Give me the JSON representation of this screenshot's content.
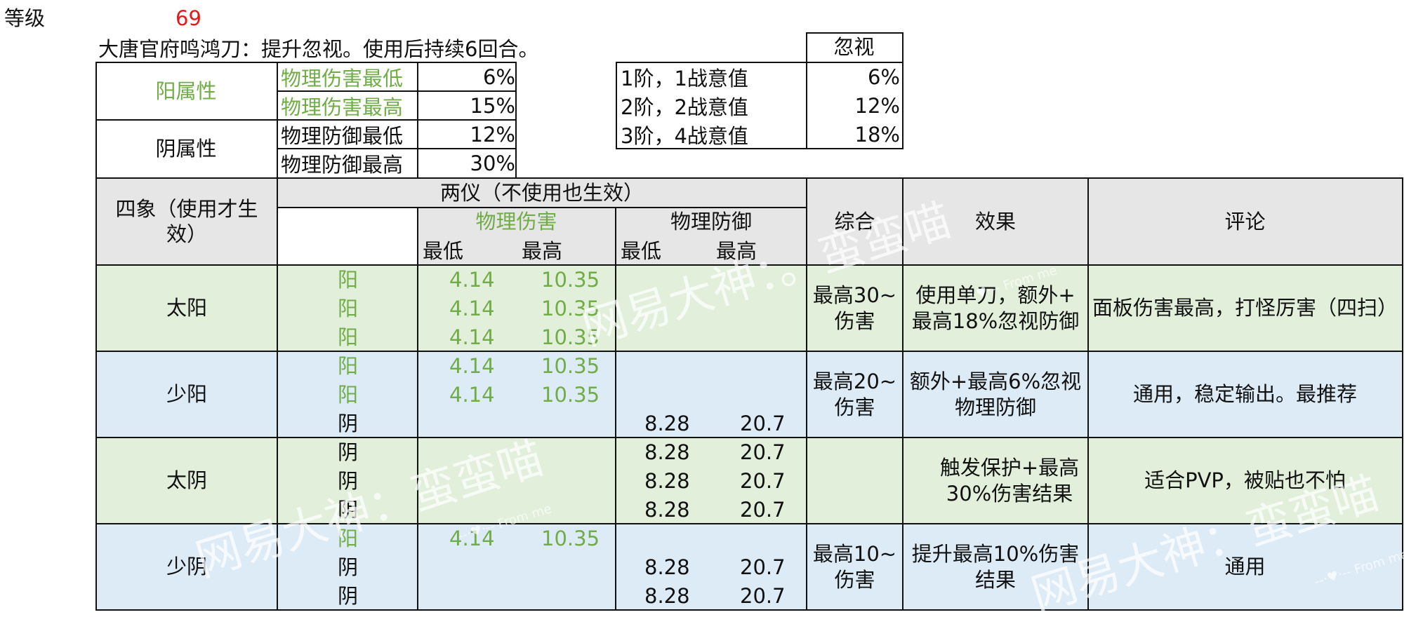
{
  "header": {
    "level_label": "等级",
    "level_value": "69"
  },
  "skill": {
    "description": "大唐官府鸣鸿刀：提升忽视。使用后持续6回合。",
    "yang_label": "阳属性",
    "yin_label": "阴属性",
    "yang_rows": [
      {
        "name": "物理伤害最低",
        "value": "6%"
      },
      {
        "name": "物理伤害最高",
        "value": "15%"
      }
    ],
    "yin_rows": [
      {
        "name": "物理防御最低",
        "value": "12%"
      },
      {
        "name": "物理防御最高",
        "value": "30%"
      }
    ]
  },
  "ignore_table": {
    "header": "忽视",
    "rows": [
      {
        "tier": "1阶，1战意值",
        "value": "6%"
      },
      {
        "tier": "2阶，2战意值",
        "value": "12%"
      },
      {
        "tier": "3阶，4战意值",
        "value": "18%"
      }
    ]
  },
  "main_table": {
    "col_sixiang": "四象（使用才生效）",
    "col_liangyi": "两仪（不使用也生效）",
    "col_phys_dmg": "物理伤害",
    "col_phys_def": "物理防御",
    "col_min": "最低",
    "col_max": "最高",
    "col_total": "综合",
    "col_effect": "效果",
    "col_comment": "评论",
    "groups": [
      {
        "name": "太阳",
        "rows": [
          {
            "type": "阳",
            "dmg_min": "4.14",
            "dmg_max": "10.35",
            "def_min": "",
            "def_max": ""
          },
          {
            "type": "阳",
            "dmg_min": "4.14",
            "dmg_max": "10.35",
            "def_min": "",
            "def_max": ""
          },
          {
            "type": "阳",
            "dmg_min": "4.14",
            "dmg_max": "10.35",
            "def_min": "",
            "def_max": ""
          }
        ],
        "total": "最高30~\n伤害",
        "effect": "使用单刀，额外+\n最高18%忽视防御",
        "comment": "面板伤害最高，打怪厉害（四扫）"
      },
      {
        "name": "少阳",
        "rows": [
          {
            "type": "阳",
            "dmg_min": "4.14",
            "dmg_max": "10.35",
            "def_min": "",
            "def_max": ""
          },
          {
            "type": "阳",
            "dmg_min": "4.14",
            "dmg_max": "10.35",
            "def_min": "",
            "def_max": ""
          },
          {
            "type": "阴",
            "dmg_min": "",
            "dmg_max": "",
            "def_min": "8.28",
            "def_max": "20.7"
          }
        ],
        "total": "最高20~\n伤害",
        "effect": "额外+最高6%忽视\n物理防御",
        "comment": "通用，稳定输出。最推荐"
      },
      {
        "name": "太阴",
        "rows": [
          {
            "type": "阴",
            "dmg_min": "",
            "dmg_max": "",
            "def_min": "8.28",
            "def_max": "20.7"
          },
          {
            "type": "阴",
            "dmg_min": "",
            "dmg_max": "",
            "def_min": "8.28",
            "def_max": "20.7"
          },
          {
            "type": "阴",
            "dmg_min": "",
            "dmg_max": "",
            "def_min": "8.28",
            "def_max": "20.7"
          }
        ],
        "total": "",
        "effect": "触发保护+最高\n30%伤害结果",
        "comment": "适合PVP，被贴也不怕"
      },
      {
        "name": "少阴",
        "rows": [
          {
            "type": "阳",
            "dmg_min": "4.14",
            "dmg_max": "10.35",
            "def_min": "",
            "def_max": ""
          },
          {
            "type": "阴",
            "dmg_min": "",
            "dmg_max": "",
            "def_min": "8.28",
            "def_max": "20.7"
          },
          {
            "type": "阴",
            "dmg_min": "",
            "dmg_max": "",
            "def_min": "8.28",
            "def_max": "20.7"
          }
        ],
        "total": "最高10~\n伤害",
        "effect": "提升最高10%伤害\n结果",
        "comment": "通用"
      }
    ]
  },
  "watermark": {
    "text": "网易大神：蛮蛮喵",
    "text_mid": "网易大神：。蛮蛮喵",
    "signature": "--·♥·-- From me"
  },
  "colors": {
    "accent_green": "#70ad47",
    "level_red": "#e21a1a",
    "header_gray": "#e7e6e6",
    "row_green": "#e2efda",
    "row_blue": "#ddebf7"
  }
}
